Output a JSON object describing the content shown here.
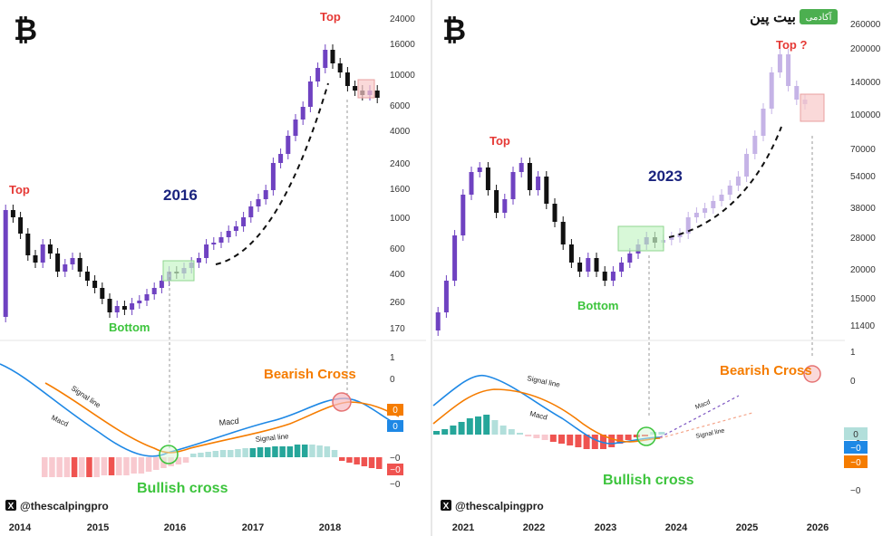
{
  "panels": [
    {
      "id": "left",
      "logo_glyph": "₿",
      "logo_icon": "bitcoin-icon",
      "year_label": "2016",
      "top_label": "Top",
      "bottom_label": "Bottom",
      "bearish_label": "Bearish Cross",
      "bullish_label": "Bullish cross",
      "signal_label_1": "Signal line",
      "signal_label_2": "Signal line",
      "macd_label_1": "Macd",
      "macd_label_2": "Macd",
      "handle": "@thescalpingpro",
      "x_axis_ticks": [
        "2014",
        "2015",
        "2016",
        "2017",
        "2018"
      ],
      "price_ticks": [
        "24000",
        "16000",
        "10000",
        "6000",
        "4000",
        "2400",
        "1600",
        "1000",
        "600",
        "400",
        "260",
        "170"
      ],
      "macd_ticks": [
        "1",
        "0",
        "−0",
        "−0"
      ],
      "macd_badges": [
        {
          "text": "0",
          "color": "#f57c00"
        },
        {
          "text": "0",
          "color": "#1e88e5"
        },
        {
          "text": "−0",
          "color": "#ef5350"
        }
      ],
      "colors": {
        "candle_up": "#6f42c1",
        "candle_down": "#111111",
        "macd": "#1e88e5",
        "signal": "#f57c00",
        "hist_pos": "#26a69a",
        "hist_neg": "#ef5350"
      }
    },
    {
      "id": "right",
      "logo_glyph": "₿",
      "logo_icon": "bitcoin-icon",
      "brand_badge": "آکادمی",
      "brand_name": "بیت پین",
      "year_label": "2023",
      "top_label_1": "Top",
      "top_label_2": "Top ?",
      "bottom_label": "Bottom",
      "bearish_label": "Bearish Cross",
      "bullish_label": "Bullish cross",
      "signal_label_1": "Signal line",
      "signal_label_2": "Signal line",
      "macd_label_1": "Macd",
      "macd_label_2": "Macd",
      "handle": "@thescalpingpro",
      "x_axis_ticks": [
        "2021",
        "2022",
        "2023",
        "2024",
        "2025",
        "2026"
      ],
      "price_ticks": [
        "260000",
        "200000",
        "140000",
        "100000",
        "70000",
        "54000",
        "38000",
        "28000",
        "20000",
        "15000",
        "11400"
      ],
      "macd_ticks": [
        "1",
        "0",
        "−0",
        "−0"
      ],
      "macd_badges": [
        {
          "text": "0",
          "color": "#b2dfdb"
        },
        {
          "text": "−0",
          "color": "#1e88e5"
        },
        {
          "text": "−0",
          "color": "#f57c00"
        }
      ],
      "colors": {
        "candle_up": "#6f42c1",
        "candle_down": "#111111",
        "projection": "#c5b3e6",
        "macd": "#1e88e5",
        "signal": "#f57c00",
        "hist_pos": "#26a69a",
        "hist_neg": "#ef5350"
      }
    }
  ],
  "chart_data": [
    {
      "type": "candlestick",
      "title": "",
      "x": [
        "2014",
        "2015",
        "2016",
        "2017",
        "2018"
      ],
      "y_scale": "log",
      "ylim": [
        150,
        28000
      ],
      "annotations": [
        "Top",
        "Bottom",
        "2016",
        "Bearish Cross",
        "Bullish cross"
      ],
      "series": [
        {
          "name": "Macd",
          "type": "line"
        },
        {
          "name": "Signal line",
          "type": "line"
        }
      ]
    },
    {
      "type": "candlestick",
      "title": "",
      "x": [
        "2021",
        "2022",
        "2023",
        "2024",
        "2025",
        "2026"
      ],
      "y_scale": "log",
      "ylim": [
        10000,
        280000
      ],
      "annotations": [
        "Top",
        "Top ?",
        "Bottom",
        "2023",
        "Bearish Cross",
        "Bullish cross"
      ],
      "series": [
        {
          "name": "Macd",
          "type": "line"
        },
        {
          "name": "Signal line",
          "type": "line"
        }
      ]
    }
  ]
}
